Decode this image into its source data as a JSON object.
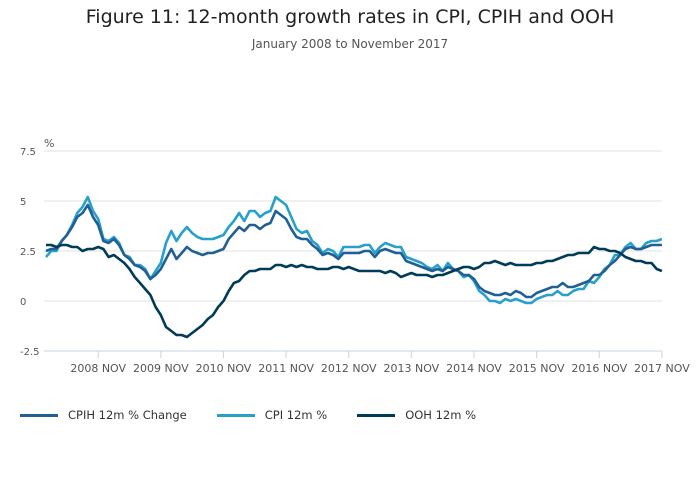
{
  "chart_data": {
    "type": "line",
    "title": "Figure 11: 12-month growth rates in CPI, CPIH and OOH",
    "subtitle": "January 2008 to November 2017",
    "ylabel": "%",
    "xlabel": "",
    "ylim": [
      -2.5,
      7.5
    ],
    "yticks": [
      7.5,
      5,
      2.5,
      0,
      -2.5
    ],
    "ytick_labels": [
      "7.5",
      "5",
      "2.5",
      "0",
      "-2.5"
    ],
    "x_start": "2008-01",
    "x_end": "2017-11",
    "xtick_labels": [
      "2008 NOV",
      "2009 NOV",
      "2010 NOV",
      "2011 NOV",
      "2012 NOV",
      "2013 NOV",
      "2014 NOV",
      "2015 NOV",
      "2016 NOV",
      "2017 NOV"
    ],
    "grid": true,
    "legend_position": "bottom-left",
    "series": [
      {
        "name": "CPIH 12m % Change",
        "color": "#206095",
        "values": [
          2.5,
          2.6,
          2.6,
          3.0,
          3.3,
          3.7,
          4.2,
          4.4,
          4.8,
          4.2,
          3.8,
          3.0,
          2.9,
          3.1,
          2.8,
          2.3,
          2.1,
          1.8,
          1.7,
          1.5,
          1.1,
          1.3,
          1.6,
          2.1,
          2.6,
          2.1,
          2.4,
          2.7,
          2.5,
          2.4,
          2.3,
          2.4,
          2.4,
          2.5,
          2.6,
          3.1,
          3.4,
          3.7,
          3.5,
          3.8,
          3.8,
          3.6,
          3.8,
          3.9,
          4.5,
          4.3,
          4.1,
          3.6,
          3.2,
          3.1,
          3.1,
          2.8,
          2.6,
          2.3,
          2.4,
          2.3,
          2.1,
          2.4,
          2.4,
          2.4,
          2.4,
          2.5,
          2.5,
          2.2,
          2.5,
          2.6,
          2.5,
          2.4,
          2.4,
          2.0,
          1.9,
          1.8,
          1.7,
          1.6,
          1.5,
          1.6,
          1.5,
          1.7,
          1.6,
          1.5,
          1.3,
          1.3,
          1.1,
          0.7,
          0.5,
          0.4,
          0.3,
          0.3,
          0.4,
          0.3,
          0.5,
          0.4,
          0.2,
          0.2,
          0.4,
          0.5,
          0.6,
          0.7,
          0.7,
          0.9,
          0.7,
          0.7,
          0.8,
          0.9,
          1.0,
          1.3,
          1.3,
          1.5,
          1.8,
          2.0,
          2.3,
          2.6,
          2.7,
          2.6,
          2.6,
          2.7,
          2.8,
          2.8,
          2.8
        ]
      },
      {
        "name": "CPI 12m %",
        "color": "#27a0cc",
        "values": [
          2.2,
          2.5,
          2.5,
          3.0,
          3.3,
          3.8,
          4.4,
          4.7,
          5.2,
          4.5,
          4.1,
          3.1,
          3.0,
          3.2,
          2.9,
          2.3,
          2.2,
          1.8,
          1.8,
          1.6,
          1.1,
          1.5,
          1.9,
          2.9,
          3.5,
          3.0,
          3.4,
          3.7,
          3.4,
          3.2,
          3.1,
          3.1,
          3.1,
          3.2,
          3.3,
          3.7,
          4.0,
          4.4,
          4.0,
          4.5,
          4.5,
          4.2,
          4.4,
          4.5,
          5.2,
          5.0,
          4.8,
          4.2,
          3.6,
          3.4,
          3.5,
          3.0,
          2.8,
          2.4,
          2.6,
          2.5,
          2.2,
          2.7,
          2.7,
          2.7,
          2.7,
          2.8,
          2.8,
          2.4,
          2.7,
          2.9,
          2.8,
          2.7,
          2.7,
          2.2,
          2.1,
          2.0,
          1.9,
          1.7,
          1.6,
          1.8,
          1.5,
          1.9,
          1.6,
          1.5,
          1.2,
          1.3,
          1.0,
          0.5,
          0.3,
          0.0,
          0.0,
          -0.1,
          0.1,
          0.0,
          0.1,
          0.0,
          -0.1,
          -0.1,
          0.1,
          0.2,
          0.3,
          0.3,
          0.5,
          0.3,
          0.3,
          0.5,
          0.6,
          0.6,
          1.0,
          0.9,
          1.2,
          1.6,
          1.8,
          2.3,
          2.3,
          2.7,
          2.9,
          2.6,
          2.6,
          2.9,
          3.0,
          3.0,
          3.1
        ]
      },
      {
        "name": "OOH 12m %",
        "color": "#003c57",
        "values": [
          2.8,
          2.8,
          2.7,
          2.8,
          2.8,
          2.7,
          2.7,
          2.5,
          2.6,
          2.6,
          2.7,
          2.6,
          2.2,
          2.3,
          2.1,
          1.9,
          1.6,
          1.2,
          0.9,
          0.6,
          0.3,
          -0.3,
          -0.7,
          -1.3,
          -1.5,
          -1.7,
          -1.7,
          -1.8,
          -1.6,
          -1.4,
          -1.2,
          -0.9,
          -0.7,
          -0.3,
          0.0,
          0.5,
          0.9,
          1.0,
          1.3,
          1.5,
          1.5,
          1.6,
          1.6,
          1.6,
          1.8,
          1.8,
          1.7,
          1.8,
          1.7,
          1.8,
          1.7,
          1.7,
          1.6,
          1.6,
          1.6,
          1.7,
          1.7,
          1.6,
          1.7,
          1.6,
          1.5,
          1.5,
          1.5,
          1.5,
          1.5,
          1.4,
          1.5,
          1.4,
          1.2,
          1.3,
          1.4,
          1.3,
          1.3,
          1.3,
          1.2,
          1.3,
          1.3,
          1.4,
          1.5,
          1.6,
          1.7,
          1.7,
          1.6,
          1.7,
          1.9,
          1.9,
          2.0,
          1.9,
          1.8,
          1.9,
          1.8,
          1.8,
          1.8,
          1.8,
          1.9,
          1.9,
          2.0,
          2.0,
          2.1,
          2.2,
          2.3,
          2.3,
          2.4,
          2.4,
          2.4,
          2.7,
          2.6,
          2.6,
          2.5,
          2.5,
          2.4,
          2.2,
          2.1,
          2.0,
          2.0,
          1.9,
          1.9,
          1.6,
          1.5
        ]
      }
    ]
  }
}
